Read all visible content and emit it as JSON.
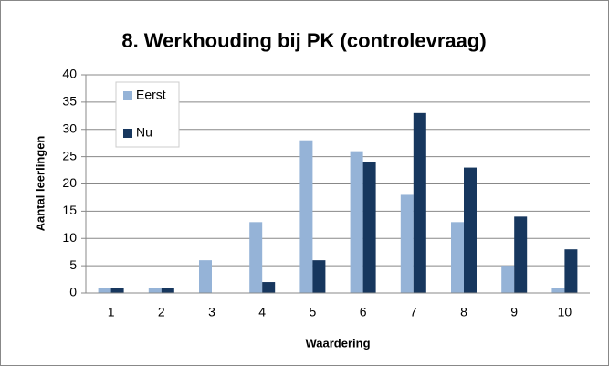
{
  "chart_data": {
    "type": "bar",
    "title": "8. Werkhouding bij PK (controlevraag)",
    "xlabel": "Waardering",
    "ylabel": "Aantal leerlingen",
    "categories": [
      "1",
      "2",
      "3",
      "4",
      "5",
      "6",
      "7",
      "8",
      "9",
      "10"
    ],
    "series": [
      {
        "name": "Eerst",
        "color": "#95b3d7",
        "values": [
          1,
          1,
          6,
          13,
          28,
          26,
          18,
          13,
          5,
          1
        ]
      },
      {
        "name": "Nu",
        "color": "#17375e",
        "values": [
          1,
          1,
          0,
          2,
          6,
          24,
          33,
          23,
          14,
          8
        ]
      }
    ],
    "ylim": [
      0,
      40
    ],
    "yticks": [
      0,
      5,
      10,
      15,
      20,
      25,
      30,
      35,
      40
    ],
    "grid": true,
    "legend": "upper left"
  }
}
